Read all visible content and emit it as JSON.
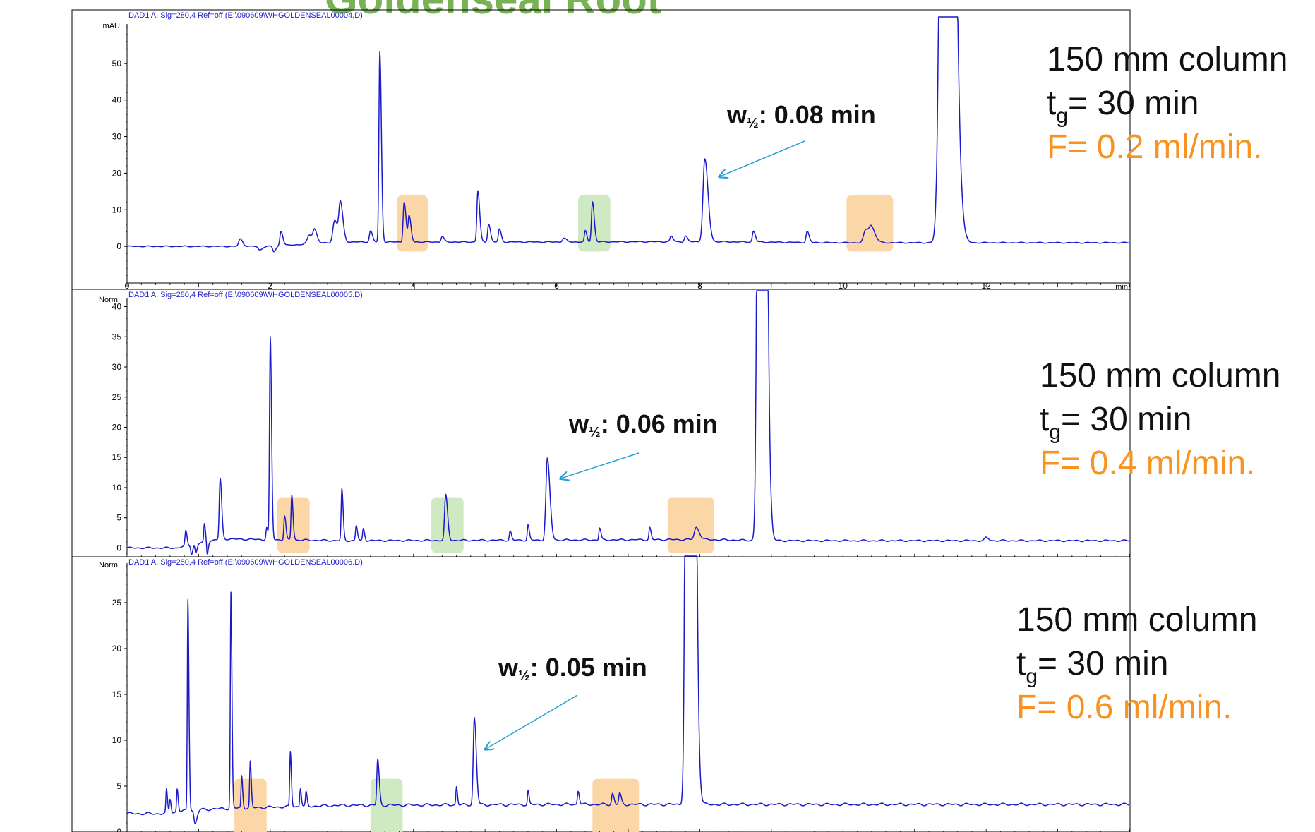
{
  "slide": {
    "title": "Goldenseal Root"
  },
  "conditions": [
    {
      "column": "150 mm column",
      "t": "t",
      "t_sub": "g",
      "t_rest": "= 30 min",
      "flow": "F= 0.2 ml/min."
    },
    {
      "column": "150 mm column",
      "t": "t",
      "t_sub": "g",
      "t_rest": "= 30 min",
      "flow": "F= 0.4 ml/min."
    },
    {
      "column": "150 mm column",
      "t": "t",
      "t_sub": "g",
      "t_rest": "= 30 min",
      "flow": "F= 0.6 ml/min."
    }
  ],
  "colors": {
    "trace": "#1a1acc",
    "arrow": "#2a9fd6",
    "highlight_orange": "#fbd7a8",
    "highlight_green": "#cfe9c2",
    "flow_text": "#f7931e",
    "title_green": "#77b254"
  },
  "chart_data": [
    {
      "type": "line",
      "title": "DAD1 A, Sig=280,4 Ref=off (E:\\090609\\WHGOLDENSEAL00004.D)",
      "ylabel": "mAU",
      "xlabel": "min",
      "xlim": [
        0,
        14
      ],
      "ylim": [
        -10,
        60
      ],
      "xticks": [
        0,
        2,
        4,
        6,
        8,
        10,
        12
      ],
      "yticks": [
        0,
        10,
        20,
        30,
        40,
        50
      ],
      "baseline": [
        [
          0,
          0
        ],
        [
          1.4,
          0
        ],
        [
          2.0,
          0
        ],
        [
          3.0,
          1.2
        ],
        [
          4.0,
          1.2
        ],
        [
          6.0,
          1.2
        ],
        [
          8.0,
          1.3
        ],
        [
          10.0,
          1.0
        ],
        [
          11.0,
          1.0
        ],
        [
          12.0,
          1.0
        ],
        [
          14.0,
          1.0
        ]
      ],
      "peaks": [
        {
          "x": 1.58,
          "h": 2,
          "w": 0.02
        },
        {
          "x": 1.85,
          "h": -1,
          "w": 0.02
        },
        {
          "x": 2.05,
          "h": -1.5,
          "w": 0.015
        },
        {
          "x": 2.15,
          "h": 4,
          "w": 0.015
        },
        {
          "x": 2.55,
          "h": 2.5,
          "w": 0.03
        },
        {
          "x": 2.62,
          "h": 3,
          "w": 0.02
        },
        {
          "x": 2.9,
          "h": 6,
          "w": 0.025
        },
        {
          "x": 2.98,
          "h": 10,
          "w": 0.02
        },
        {
          "x": 3.4,
          "h": 3,
          "w": 0.015
        },
        {
          "x": 3.53,
          "h": 52,
          "w": 0.012
        },
        {
          "x": 3.87,
          "h": 11,
          "w": 0.014
        },
        {
          "x": 3.94,
          "h": 7,
          "w": 0.014
        },
        {
          "x": 4.4,
          "h": 1.5,
          "w": 0.015
        },
        {
          "x": 4.9,
          "h": 14,
          "w": 0.014
        },
        {
          "x": 5.05,
          "h": 5,
          "w": 0.014
        },
        {
          "x": 5.2,
          "h": 3.5,
          "w": 0.014
        },
        {
          "x": 6.1,
          "h": 1,
          "w": 0.02
        },
        {
          "x": 6.4,
          "h": 3,
          "w": 0.012
        },
        {
          "x": 6.5,
          "h": 11,
          "w": 0.014
        },
        {
          "x": 7.6,
          "h": 1.5,
          "w": 0.015
        },
        {
          "x": 7.8,
          "h": 1.5,
          "w": 0.015
        },
        {
          "x": 8.07,
          "h": 22.5,
          "w": 0.025
        },
        {
          "x": 8.75,
          "h": 3,
          "w": 0.015
        },
        {
          "x": 9.5,
          "h": 3,
          "w": 0.015
        },
        {
          "x": 10.32,
          "h": 3.5,
          "w": 0.03
        },
        {
          "x": 10.4,
          "h": 3.5,
          "w": 0.03
        },
        {
          "x": 11.43,
          "h": 400,
          "w": 0.05
        }
      ],
      "highlights": [
        {
          "color": "orange",
          "x": [
            3.77,
            4.2
          ]
        },
        {
          "color": "green",
          "x": [
            6.3,
            6.75
          ]
        },
        {
          "color": "orange",
          "x": [
            10.05,
            10.7
          ]
        }
      ],
      "annotation": {
        "label_prefix": "w",
        "label_sub": "½",
        "label_rest": ": 0.08 min",
        "target": [
          8.27,
          19
        ]
      }
    },
    {
      "type": "line",
      "title": "DAD1 A, Sig=280,4 Ref=off (E:\\090609\\WHGOLDENSEAL00005.D)",
      "ylabel": "Norm.",
      "xlim": [
        0,
        14
      ],
      "ylim": [
        -1,
        41
      ],
      "yticks": [
        0,
        5,
        10,
        15,
        20,
        25,
        30,
        35,
        40
      ],
      "baseline": [
        [
          0,
          0
        ],
        [
          0.7,
          0
        ],
        [
          1.3,
          1.5
        ],
        [
          3.0,
          1.2
        ],
        [
          6.0,
          1.3
        ],
        [
          8.0,
          1.4
        ],
        [
          9.0,
          1.2
        ],
        [
          14.0,
          1.2
        ]
      ],
      "peaks": [
        {
          "x": 0.82,
          "h": 2.5,
          "w": 0.01
        },
        {
          "x": 0.9,
          "h": -1.5,
          "w": 0.01
        },
        {
          "x": 0.96,
          "h": -1.5,
          "w": 0.01
        },
        {
          "x": 1.08,
          "h": 3,
          "w": 0.008
        },
        {
          "x": 1.12,
          "h": -2,
          "w": 0.008
        },
        {
          "x": 1.3,
          "h": 10,
          "w": 0.012
        },
        {
          "x": 1.95,
          "h": 2,
          "w": 0.01
        },
        {
          "x": 2.0,
          "h": 33.5,
          "w": 0.01
        },
        {
          "x": 2.2,
          "h": 4,
          "w": 0.01
        },
        {
          "x": 2.3,
          "h": 7.5,
          "w": 0.01
        },
        {
          "x": 3.0,
          "h": 8.5,
          "w": 0.01
        },
        {
          "x": 3.2,
          "h": 2.5,
          "w": 0.01
        },
        {
          "x": 3.3,
          "h": 2,
          "w": 0.01
        },
        {
          "x": 4.45,
          "h": 7.5,
          "w": 0.015
        },
        {
          "x": 5.35,
          "h": 1.5,
          "w": 0.01
        },
        {
          "x": 5.6,
          "h": 2.5,
          "w": 0.01
        },
        {
          "x": 5.87,
          "h": 13.5,
          "w": 0.02
        },
        {
          "x": 6.6,
          "h": 2,
          "w": 0.01
        },
        {
          "x": 7.3,
          "h": 2,
          "w": 0.01
        },
        {
          "x": 7.95,
          "h": 2,
          "w": 0.025
        },
        {
          "x": 8.85,
          "h": 300,
          "w": 0.03
        },
        {
          "x": 12.0,
          "h": 0.5,
          "w": 0.02
        }
      ],
      "highlights": [
        {
          "color": "orange",
          "x": [
            2.1,
            2.55
          ]
        },
        {
          "color": "green",
          "x": [
            4.25,
            4.7
          ]
        },
        {
          "color": "orange",
          "x": [
            7.55,
            8.2
          ]
        }
      ],
      "annotation": {
        "label_prefix": "w",
        "label_sub": "½",
        "label_rest": ": 0.06 min",
        "target": [
          6.05,
          11.5
        ]
      }
    },
    {
      "type": "line",
      "title": "DAD1 A, Sig=280,4 Ref=off (E:\\090609\\WHGOLDENSEAL00006.D)",
      "ylabel": "Norm.",
      "xlim": [
        0,
        14
      ],
      "ylim": [
        0,
        29
      ],
      "yticks": [
        0,
        5,
        10,
        15,
        20,
        25
      ],
      "baseline": [
        [
          0,
          2
        ],
        [
          0.5,
          2
        ],
        [
          0.9,
          2.4
        ],
        [
          1.5,
          2.6
        ],
        [
          3.0,
          2.9
        ],
        [
          6.0,
          3
        ],
        [
          9.0,
          3
        ],
        [
          14.0,
          3
        ]
      ],
      "peaks": [
        {
          "x": 0.55,
          "h": 2.5,
          "w": 0.008
        },
        {
          "x": 0.6,
          "h": 1.5,
          "w": 0.008
        },
        {
          "x": 0.7,
          "h": 2.5,
          "w": 0.008
        },
        {
          "x": 0.85,
          "h": 23,
          "w": 0.008
        },
        {
          "x": 0.95,
          "h": -1.5,
          "w": 0.015
        },
        {
          "x": 1.45,
          "h": 23.5,
          "w": 0.008
        },
        {
          "x": 1.6,
          "h": 3.5,
          "w": 0.008
        },
        {
          "x": 1.72,
          "h": 5,
          "w": 0.008
        },
        {
          "x": 2.28,
          "h": 6,
          "w": 0.008
        },
        {
          "x": 2.42,
          "h": 2,
          "w": 0.008
        },
        {
          "x": 2.5,
          "h": 1.5,
          "w": 0.008
        },
        {
          "x": 3.5,
          "h": 5,
          "w": 0.012
        },
        {
          "x": 4.6,
          "h": 2,
          "w": 0.008
        },
        {
          "x": 4.85,
          "h": 9.5,
          "w": 0.015
        },
        {
          "x": 5.6,
          "h": 1.5,
          "w": 0.008
        },
        {
          "x": 6.3,
          "h": 1.5,
          "w": 0.01
        },
        {
          "x": 6.78,
          "h": 1.2,
          "w": 0.012
        },
        {
          "x": 6.88,
          "h": 1.2,
          "w": 0.012
        },
        {
          "x": 7.85,
          "h": 250,
          "w": 0.03
        }
      ],
      "highlights": [
        {
          "color": "orange",
          "x": [
            1.5,
            1.95
          ]
        },
        {
          "color": "green",
          "x": [
            3.4,
            3.85
          ]
        },
        {
          "color": "orange",
          "x": [
            6.5,
            7.15
          ]
        }
      ],
      "annotation": {
        "label_prefix": "w",
        "label_sub": "½",
        "label_rest": ": 0.05 min",
        "target": [
          5.0,
          9
        ]
      }
    }
  ]
}
